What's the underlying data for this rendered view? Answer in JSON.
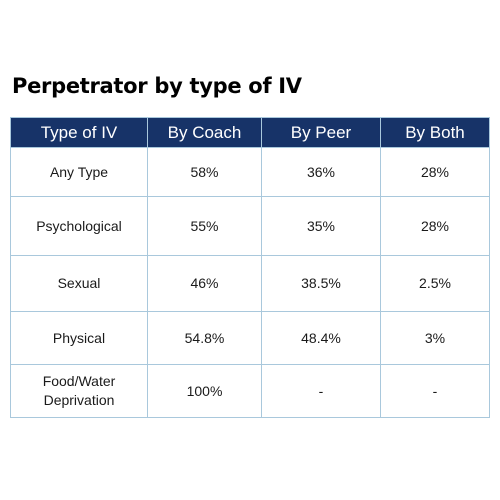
{
  "chart_data": {
    "type": "table",
    "title": "Perpetrator by type of IV",
    "columns": [
      "Type of IV",
      "By Coach",
      "By Peer",
      "By Both"
    ],
    "rows": [
      [
        "Any Type",
        "58%",
        "36%",
        "28%"
      ],
      [
        "Psychological",
        "55%",
        "35%",
        "28%"
      ],
      [
        "Sexual",
        "46%",
        "38.5%",
        "2.5%"
      ],
      [
        "Physical",
        "54.8%",
        "48.4%",
        "3%"
      ],
      [
        "Food/Water Deprivation",
        "100%",
        "-",
        "-"
      ]
    ]
  },
  "colors": {
    "header_background": "#173368",
    "header_text": "#ffffff",
    "border": "#a9c8dc",
    "cell_text": "#1a1a1a"
  }
}
